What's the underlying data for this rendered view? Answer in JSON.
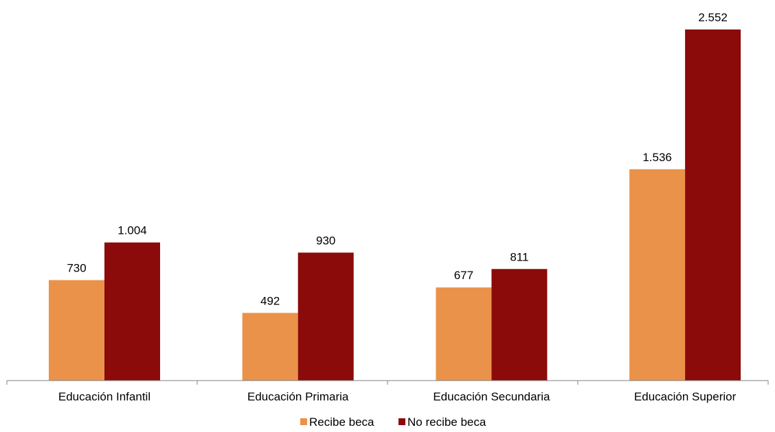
{
  "chart_data": {
    "type": "bar",
    "categories": [
      "Educación Infantil",
      "Educación Primaria",
      "Educación Secundaria",
      "Educación Superior"
    ],
    "series": [
      {
        "name": "Recibe beca",
        "values": [
          730,
          492,
          677,
          1536
        ],
        "labels": [
          "730",
          "492",
          "677",
          "1.536"
        ],
        "color": "#EB924A"
      },
      {
        "name": "No recibe beca",
        "values": [
          1004,
          930,
          811,
          2552
        ],
        "labels": [
          "1.004",
          "930",
          "811",
          "2.552"
        ],
        "color": "#8B0A0A"
      }
    ],
    "ylim": [
      0,
      2552
    ],
    "grid": false,
    "legend": "bottom-center",
    "axis_color": "#808080"
  }
}
